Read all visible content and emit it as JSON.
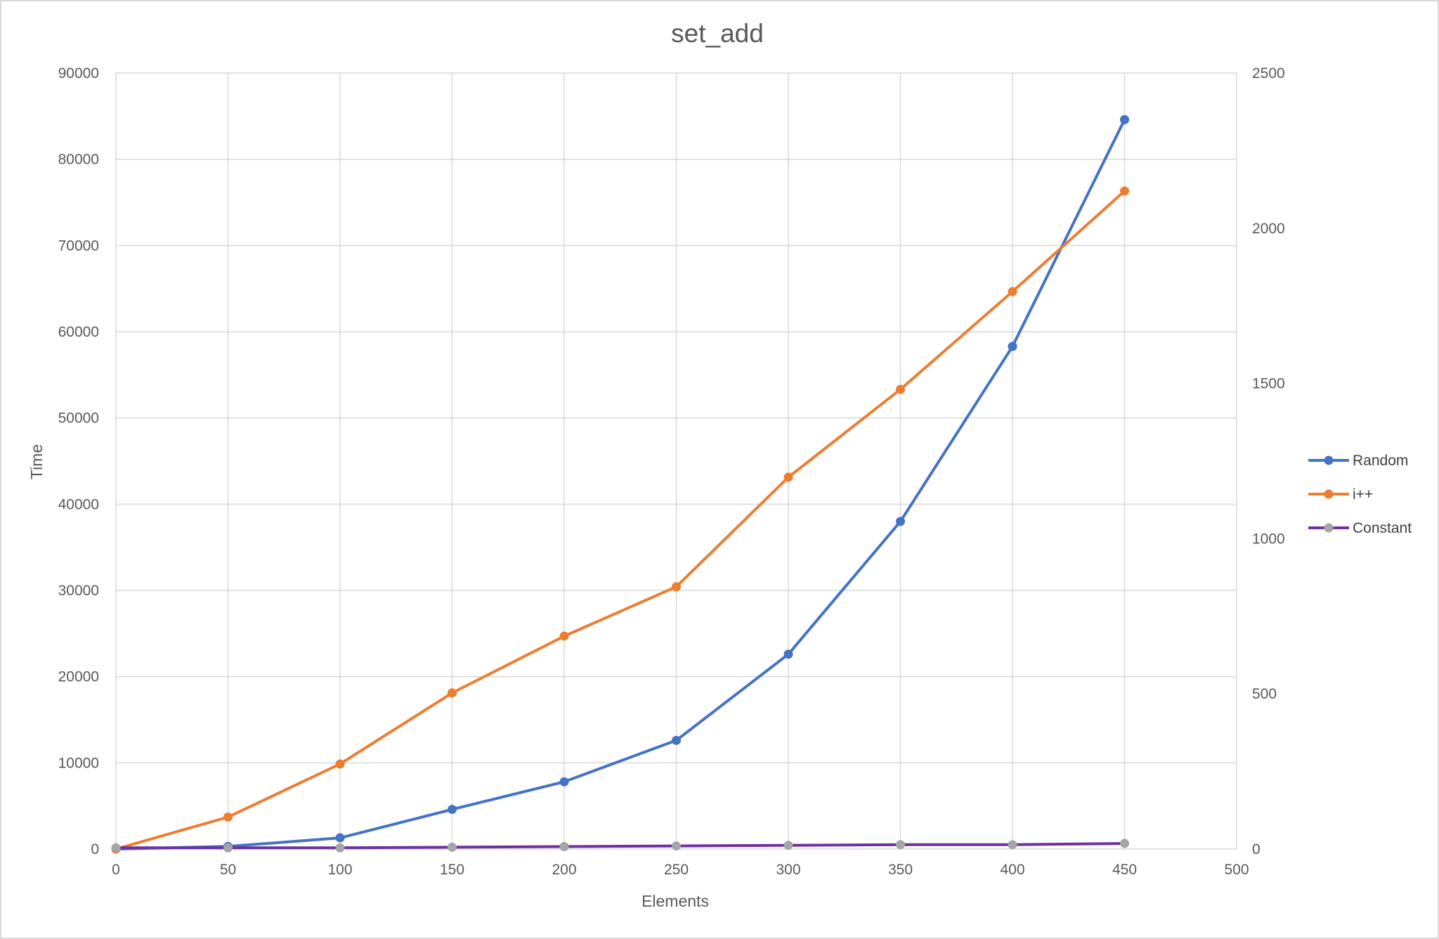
{
  "chart_data": {
    "type": "line",
    "title": "set_add",
    "xlabel": "Elements",
    "ylabel": "Time",
    "xlim": [
      0,
      500
    ],
    "ylim": [
      0,
      90000
    ],
    "y2lim": [
      0,
      2500
    ],
    "x_ticks": [
      "0",
      "50",
      "100",
      "150",
      "200",
      "250",
      "300",
      "350",
      "400",
      "450",
      "500"
    ],
    "y_ticks": [
      "0",
      "10000",
      "20000",
      "30000",
      "40000",
      "50000",
      "60000",
      "70000",
      "80000",
      "90000"
    ],
    "y2_ticks": [
      "0",
      "500",
      "1000",
      "1500",
      "2000",
      "2500"
    ],
    "grid": true,
    "legend_position": "right",
    "x": [
      0,
      50,
      100,
      150,
      200,
      250,
      300,
      350,
      400,
      450
    ],
    "series": [
      {
        "name": "Random",
        "axis": "left",
        "line_color": "#4472C4",
        "marker_color": "#4472C4",
        "values": [
          0,
          300,
          1300,
          4600,
          7800,
          12600,
          22600,
          38000,
          58300,
          84600
        ]
      },
      {
        "name": "i++",
        "axis": "right",
        "line_color": "#ED7D31",
        "marker_color": "#ED7D31",
        "values": [
          0,
          103,
          274,
          503,
          686,
          845,
          1198,
          1481,
          1796,
          2120
        ]
      },
      {
        "name": "Constant",
        "axis": "right",
        "line_color": "#7030A0",
        "marker_color": "#A5A5A5",
        "values": [
          4,
          4,
          4,
          6,
          8,
          10,
          12,
          14,
          14,
          18
        ]
      }
    ]
  }
}
